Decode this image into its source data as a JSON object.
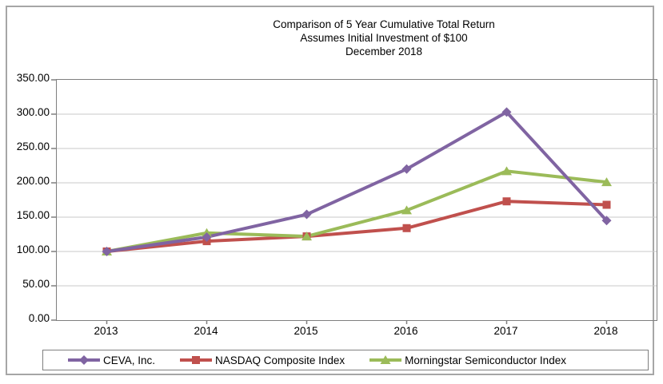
{
  "chart_data": {
    "type": "line",
    "title_lines": [
      "Comparison of 5 Year Cumulative Total Return",
      "Assumes Initial Investment of $100",
      "December 2018"
    ],
    "categories": [
      "2013",
      "2014",
      "2015",
      "2016",
      "2017",
      "2018"
    ],
    "series": [
      {
        "name": "CEVA, Inc.",
        "color": "#8064A2",
        "marker": "diamond",
        "values": [
          100,
          121,
          154,
          220,
          303,
          145
        ]
      },
      {
        "name": "NASDAQ Composite Index",
        "color": "#C0504D",
        "marker": "square",
        "values": [
          100,
          115,
          122,
          134,
          173,
          168
        ]
      },
      {
        "name": "Morningstar Semiconductor Index",
        "color": "#9BBB59",
        "marker": "triangle",
        "values": [
          100,
          127,
          122,
          160,
          217,
          201
        ]
      }
    ],
    "ylim": [
      0,
      350
    ],
    "ytick_step": 50,
    "ytick_labels": [
      "0.00",
      "50.00",
      "100.00",
      "150.00",
      "200.00",
      "250.00",
      "300.00",
      "350.00"
    ],
    "grid": true,
    "legend_position": "bottom",
    "colors": {
      "gridline": "#c9c9c9",
      "plot_border": "#7f7f7f",
      "outer_border": "#a6a6a6",
      "text": "#000000"
    }
  }
}
